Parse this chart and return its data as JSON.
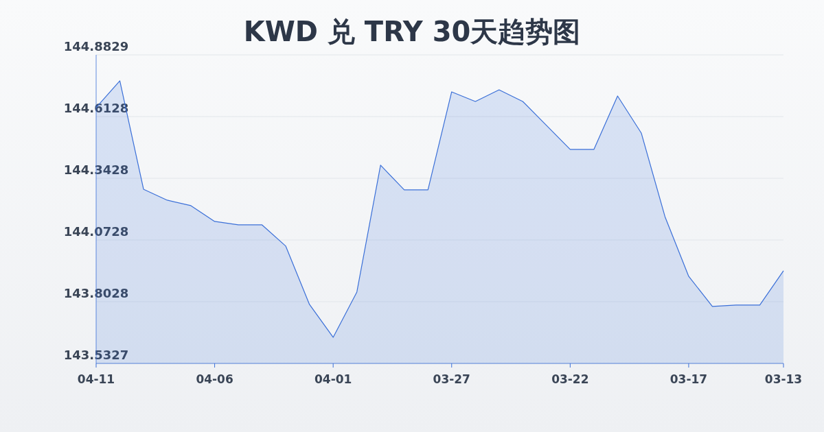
{
  "chart_data": {
    "type": "area",
    "title": "KWD 兑 TRY 30天趋势图",
    "categories": [
      "04-11",
      null,
      null,
      null,
      null,
      "04-06",
      null,
      null,
      null,
      null,
      "04-01",
      null,
      null,
      null,
      null,
      "03-27",
      null,
      null,
      null,
      null,
      "03-22",
      null,
      null,
      null,
      null,
      "03-17",
      null,
      null,
      null,
      "03-13"
    ],
    "series": [
      {
        "color": "#3a6fd8",
        "values": [
          144.652,
          144.769,
          144.295,
          144.247,
          144.223,
          144.154,
          144.139,
          144.139,
          144.046,
          143.791,
          143.647,
          143.845,
          144.4,
          144.292,
          144.292,
          144.721,
          144.679,
          144.73,
          144.679,
          144.574,
          144.469,
          144.469,
          144.703,
          144.541,
          144.175,
          143.914,
          143.782,
          143.788,
          143.788,
          143.938
        ]
      }
    ],
    "ylim": [
      143.5327,
      144.8829
    ],
    "yticks": [
      143.5327,
      143.8028,
      144.0728,
      144.3428,
      144.6128,
      144.8829
    ],
    "grid": "y",
    "marker": "none",
    "line_style": "solid"
  }
}
